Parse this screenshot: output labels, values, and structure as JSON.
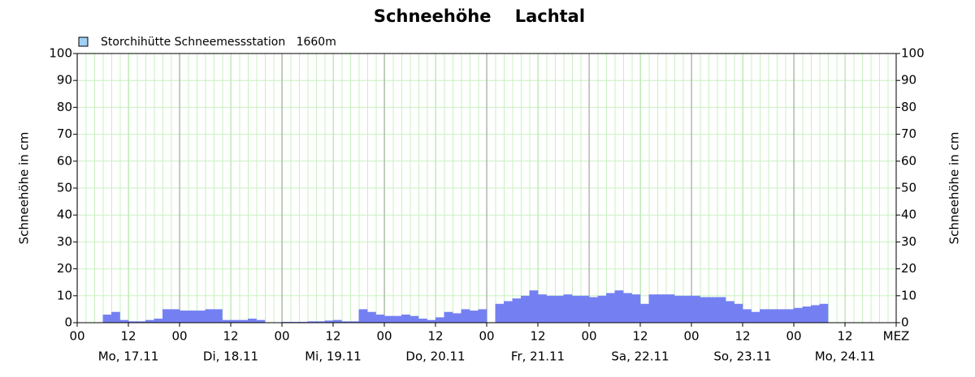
{
  "chart_data": {
    "type": "bar",
    "title": "Schneehöhe    Lachtal",
    "ylabel": "Schneehöhe in cm",
    "y2label": "Schneehöhe in cm",
    "x": [
      0,
      2,
      4,
      6,
      8,
      10,
      12,
      14,
      16,
      18,
      20,
      22,
      24,
      26,
      28,
      30,
      32,
      34,
      36,
      38,
      40,
      42,
      44,
      46,
      48,
      50,
      52,
      54,
      56,
      58,
      60,
      62,
      64,
      66,
      68,
      70,
      72,
      74,
      76,
      78,
      80,
      82,
      84,
      86,
      88,
      90,
      92,
      94,
      96,
      98,
      100,
      102,
      104,
      106,
      108,
      110,
      112,
      114,
      116,
      118,
      120,
      122,
      124,
      126,
      128,
      130,
      132,
      134,
      136,
      138,
      140,
      142,
      144,
      146,
      148,
      150,
      152,
      154,
      156,
      158,
      160,
      162,
      164,
      166,
      168,
      170,
      172,
      174
    ],
    "series": [
      {
        "name": "Storchihütte Schneemessstation   1660m",
        "color": "#7480f2",
        "values": [
          null,
          null,
          null,
          3,
          4,
          1,
          0.5,
          0.5,
          1,
          1.5,
          5,
          5,
          4.5,
          4.5,
          4.5,
          5,
          5,
          1,
          1,
          1,
          1.5,
          1,
          0,
          0,
          0.3,
          0.3,
          0.3,
          0.5,
          0.5,
          0.8,
          1,
          0.5,
          0.5,
          5,
          4,
          3,
          2.5,
          2.5,
          3,
          2.5,
          1.5,
          1,
          2,
          4,
          3.5,
          5,
          4.5,
          5,
          0,
          7,
          8,
          9,
          10,
          12,
          10.5,
          10,
          10,
          10.5,
          10,
          10,
          9.5,
          10,
          11,
          12,
          11,
          10.5,
          7,
          10.5,
          10.5,
          10.5,
          10,
          10,
          10,
          9.5,
          9.5,
          9.5,
          8,
          7,
          5,
          4,
          5,
          5,
          5,
          5,
          5.5,
          6,
          6.5,
          7
        ]
      }
    ],
    "xlim": [
      0,
      192
    ],
    "xticks": [
      {
        "value": 0,
        "label": "00"
      },
      {
        "value": 12,
        "label": "12"
      },
      {
        "value": 24,
        "label": "00"
      },
      {
        "value": 36,
        "label": "12"
      },
      {
        "value": 48,
        "label": "00"
      },
      {
        "value": 60,
        "label": "12"
      },
      {
        "value": 72,
        "label": "00"
      },
      {
        "value": 84,
        "label": "12"
      },
      {
        "value": 96,
        "label": "00"
      },
      {
        "value": 108,
        "label": "12"
      },
      {
        "value": 120,
        "label": "00"
      },
      {
        "value": 132,
        "label": "12"
      },
      {
        "value": 144,
        "label": "00"
      },
      {
        "value": 156,
        "label": "12"
      },
      {
        "value": 168,
        "label": "00"
      },
      {
        "value": 180,
        "label": "12"
      },
      {
        "value": 192,
        "label": "MEZ"
      }
    ],
    "x_day_labels": [
      "Mo, 17.11",
      "Di, 18.11",
      "Mi, 19.11",
      "Do, 20.11",
      "Fr, 21.11",
      "Sa, 22.11",
      "So, 23.11",
      "Mo, 24.11"
    ],
    "ylim": [
      0,
      100
    ],
    "yticks": [
      0,
      10,
      20,
      30,
      40,
      50,
      60,
      70,
      80,
      90,
      100
    ],
    "y2lim": [
      0,
      100
    ],
    "y2ticks": [
      0,
      10,
      20,
      30,
      40,
      50,
      60,
      70,
      80,
      90,
      100
    ],
    "grid": true,
    "legend": "top-left"
  }
}
